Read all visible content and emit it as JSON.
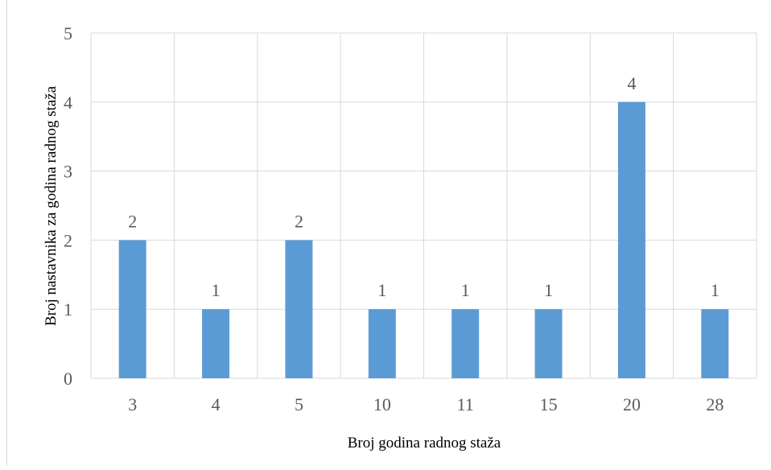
{
  "chart_data": {
    "type": "bar",
    "categories": [
      "3",
      "4",
      "5",
      "10",
      "11",
      "15",
      "20",
      "28"
    ],
    "values": [
      2,
      1,
      2,
      1,
      1,
      1,
      4,
      1
    ],
    "data_labels": [
      "2",
      "1",
      "2",
      "1",
      "1",
      "1",
      "4",
      "1"
    ],
    "xlabel": "Broj godina radnog staža",
    "ylabel": "Broj nastavnika za godina radnog staža",
    "ylim": [
      0,
      5
    ],
    "yticks": [
      "0",
      "1",
      "2",
      "3",
      "4",
      "5"
    ],
    "grid": true,
    "bar_color": "#5b9bd5",
    "grid_color": "#d9d9d9"
  }
}
